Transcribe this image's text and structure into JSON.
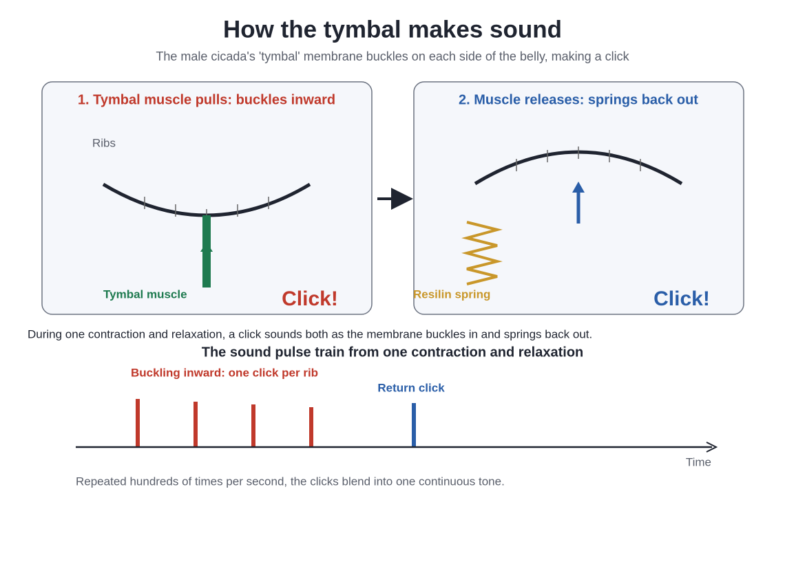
{
  "header": {
    "title": "How the tymbal makes sound",
    "subtitle": "The male cicada's 'tymbal' membrane buckles on each side of the belly, making a click"
  },
  "panels": [
    {
      "title": "1. Tymbal muscle pulls: buckles inward",
      "ribs_label": "Ribs",
      "part_label": "Tymbal muscle",
      "sound": "Click!"
    },
    {
      "title": "2. Muscle releases: springs back out",
      "part_label": "Resilin spring",
      "sound": "Click!"
    }
  ],
  "caption": "During one contraction and relaxation, a click sounds both as the membrane buckles in and springs back out.",
  "pulse_train": {
    "title": "The sound pulse train from one contraction and relaxation",
    "inward_label": "Buckling inward: one click per rib",
    "return_label": "Return click",
    "axis_label": "Time"
  },
  "footer": "Repeated hundreds of times per second, the clicks blend into one continuous tone."
}
